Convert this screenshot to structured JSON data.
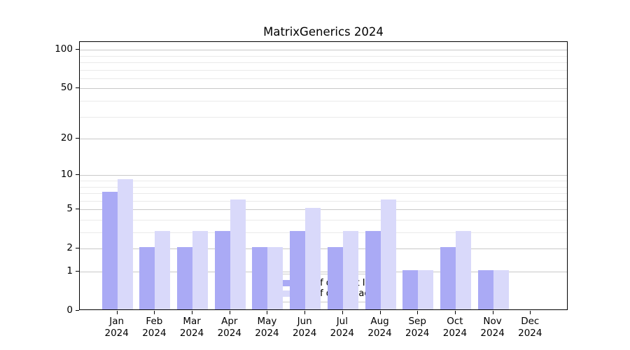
{
  "chart_data": {
    "type": "bar",
    "title": "MatrixGenerics 2024",
    "categories": [
      "Jan 2024",
      "Feb 2024",
      "Mar 2024",
      "Apr 2024",
      "May 2024",
      "Jun 2024",
      "Jul 2024",
      "Aug 2024",
      "Sep 2024",
      "Oct 2024",
      "Nov 2024",
      "Dec 2024"
    ],
    "series": [
      {
        "name": "Nb of distinct IPs",
        "color": "#aaaaf5",
        "values": [
          7,
          2,
          2,
          3,
          2,
          3,
          2,
          3,
          1,
          2,
          1,
          0
        ]
      },
      {
        "name": "Nb of downloads",
        "color": "#d9d9fa",
        "values": [
          9,
          3,
          3,
          6,
          2,
          5,
          3,
          6,
          1,
          3,
          1,
          0
        ]
      }
    ],
    "y_axis": {
      "scale": "log1p",
      "major_ticks": [
        0,
        1,
        2,
        5,
        10,
        20,
        50,
        100
      ],
      "minor_ticks": [
        3,
        4,
        6,
        7,
        8,
        9,
        30,
        40,
        60,
        70,
        80,
        90
      ],
      "ylim": [
        0,
        115
      ]
    },
    "x_axis": {
      "tick_label_format": "month newline year"
    },
    "legend": {
      "position": "lower-center-inside"
    },
    "grid": "on"
  },
  "colors": {
    "bar_distinct_ips": "#aaaaf5",
    "bar_downloads": "#d9d9fa",
    "major_grid": "#c8c8c8",
    "minor_grid": "#eaeaea",
    "spine": "#000000",
    "tick_text": "#000000",
    "legend_border": "#cccccc",
    "legend_background": "rgba(255,255,255,0.8)"
  }
}
